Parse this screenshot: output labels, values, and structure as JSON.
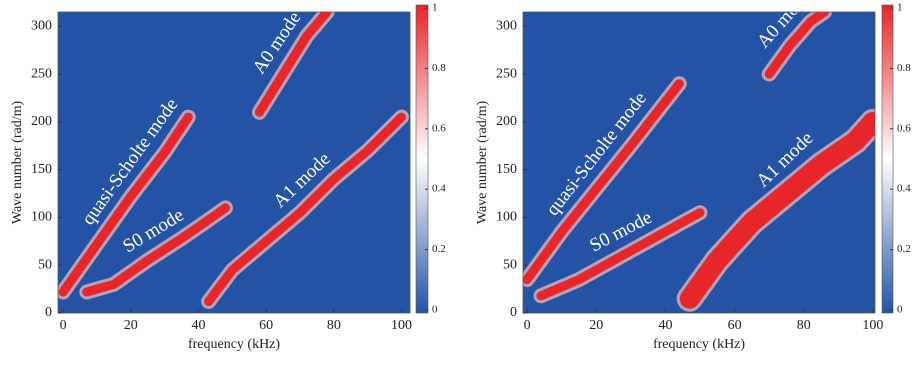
{
  "chart_data": [
    {
      "type": "dispersion",
      "xlabel": "frequency (kHz)",
      "ylabel": "Wave number (rad/m)",
      "xlim": [
        -1.5,
        102.5
      ],
      "ylim": [
        0,
        315
      ],
      "xticks": [
        0,
        20,
        40,
        60,
        80,
        100
      ],
      "yticks": [
        0,
        50,
        100,
        150,
        200,
        250,
        300
      ],
      "background": "#2453a5",
      "colorbar": {
        "lim": [
          -0.01,
          1.01
        ],
        "ticks": [
          0,
          0.2,
          0.4,
          0.6,
          0.8,
          1
        ],
        "colors": [
          "#2453a5",
          "#ffffff",
          "#e8262a"
        ]
      },
      "series": [
        {
          "name": "quasi-Scholte mode",
          "color": "#e8262a",
          "x": [
            0,
            10,
            20,
            30,
            37
          ],
          "values": [
            22,
            72,
            122,
            168,
            205
          ]
        },
        {
          "name": "S0 mode",
          "color": "#e8262a",
          "x": [
            7,
            15,
            25,
            35,
            42,
            48
          ],
          "values": [
            22,
            30,
            55,
            78,
            95,
            110
          ]
        },
        {
          "name": "A0 mode",
          "color": "#e8262a",
          "x": [
            58,
            65,
            72,
            78
          ],
          "values": [
            210,
            250,
            290,
            315
          ]
        },
        {
          "name": "A1 mode",
          "color": "#e8262a",
          "x": [
            43,
            50,
            60,
            70,
            80,
            90,
            100
          ],
          "values": [
            12,
            45,
            75,
            105,
            140,
            170,
            205
          ]
        }
      ]
    },
    {
      "type": "dispersion",
      "xlabel": "frequency (kHz)",
      "ylabel": "Wave number (rad/m)",
      "xlim": [
        -1.2,
        100.6
      ],
      "ylim": [
        0,
        315
      ],
      "xticks": [
        0,
        20,
        40,
        60,
        80,
        100
      ],
      "yticks": [
        0,
        50,
        100,
        150,
        200,
        250,
        300
      ],
      "background": "#2453a5",
      "colorbar": {
        "lim": [
          -0.01,
          1.01
        ],
        "ticks": [
          0,
          0.2,
          0.4,
          0.6,
          0.8,
          1
        ],
        "colors": [
          "#2453a5",
          "#ffffff",
          "#e8262a"
        ]
      },
      "series": [
        {
          "name": "quasi-Scholte mode",
          "color": "#e8262a",
          "x": [
            0,
            10,
            20,
            30,
            44
          ],
          "values": [
            35,
            85,
            130,
            175,
            240
          ]
        },
        {
          "name": "S0 mode",
          "color": "#e8262a",
          "x": [
            4,
            15,
            25,
            35,
            45,
            50
          ],
          "values": [
            18,
            35,
            55,
            75,
            95,
            105
          ]
        },
        {
          "name": "A0 mode",
          "color": "#e8262a",
          "x": [
            70,
            76,
            82,
            86
          ],
          "values": [
            250,
            280,
            305,
            315
          ]
        },
        {
          "name": "A1 mode",
          "color": "#e8262a",
          "x": [
            47,
            55,
            65,
            75,
            85,
            95,
            100
          ],
          "values": [
            15,
            55,
            95,
            125,
            155,
            180,
            200
          ]
        }
      ]
    }
  ]
}
